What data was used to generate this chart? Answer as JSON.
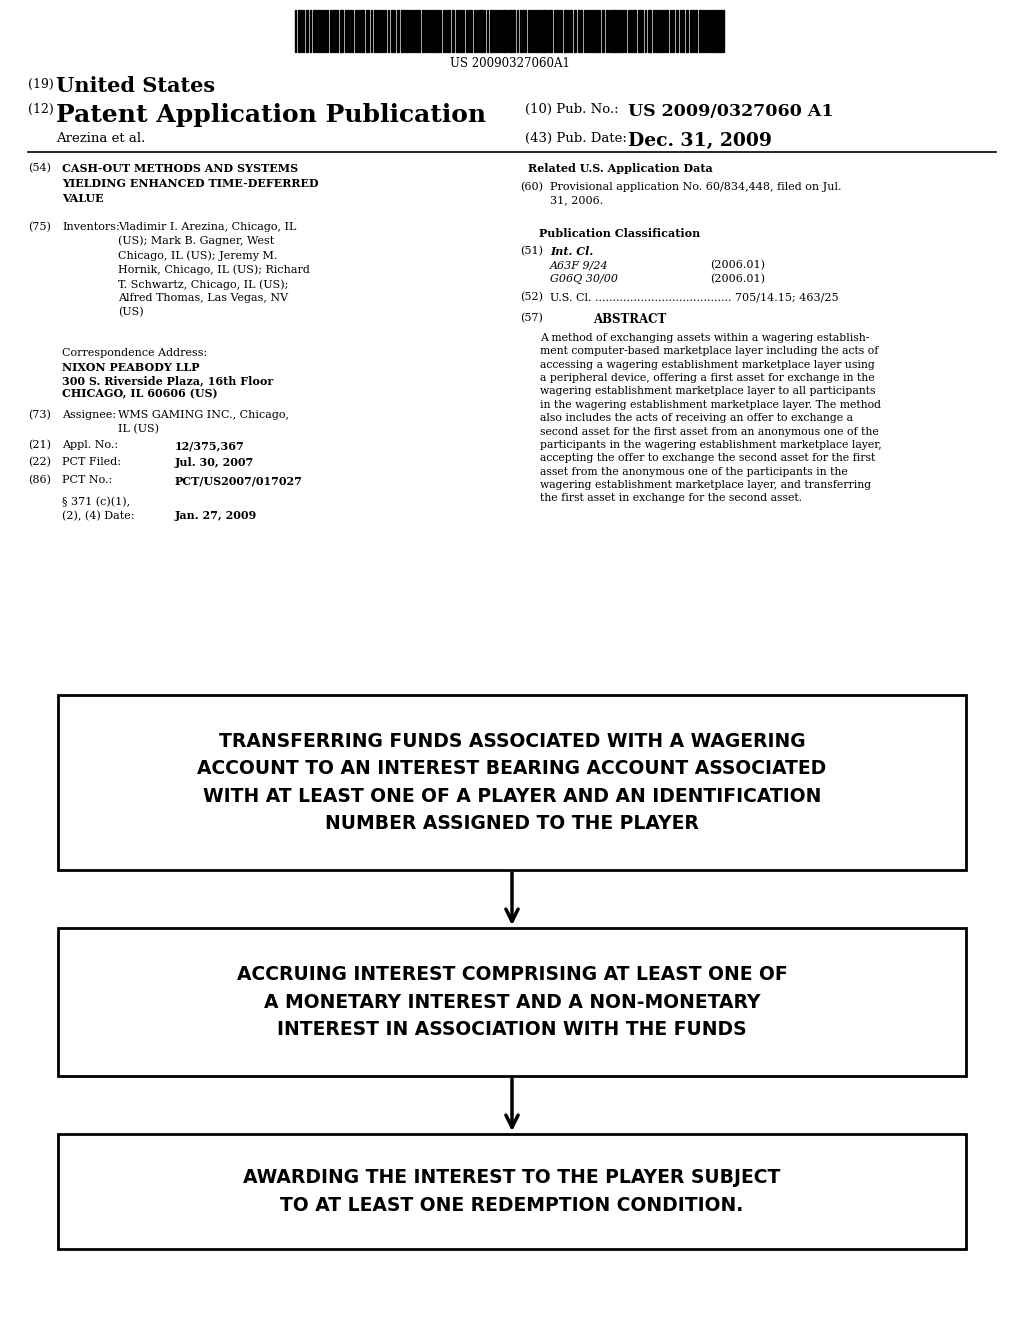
{
  "bg_color": "#ffffff",
  "barcode_text": "US 20090327060A1",
  "header_line1_num": "(19)",
  "header_line1_text": "United States",
  "header_line2_num": "(12)",
  "header_line2_text": "Patent Application Publication",
  "header_pub_no_label": "(10) Pub. No.:",
  "header_pub_no_value": "US 2009/0327060 A1",
  "header_author": "Arezina et al.",
  "header_pub_date_label": "(43) Pub. Date:",
  "header_pub_date_value": "Dec. 31, 2009",
  "field54_label": "(54)",
  "field54_text": "CASH-OUT METHODS AND SYSTEMS\nYIELDING ENHANCED TIME-DEFERRED\nVALUE",
  "related_header": "Related U.S. Application Data",
  "field60_label": "(60)",
  "field60_text": "Provisional application No. 60/834,448, filed on Jul.\n31, 2006.",
  "field75_label": "(75)",
  "field75_title": "Inventors:",
  "field75_text": "Vladimir I. Arezina, Chicago, IL\n(US); Mark B. Gagner, West\nChicago, IL (US); Jeremy M.\nHornik, Chicago, IL (US); Richard\nT. Schwartz, Chicago, IL (US);\nAlfred Thomas, Las Vegas, NV\n(US)",
  "pubclass_header": "Publication Classification",
  "field51_label": "(51)",
  "field51_title": "Int. Cl.",
  "field51_a63f": "A63F 9/24",
  "field51_a63f_year": "(2006.01)",
  "field51_g06q": "G06Q 30/00",
  "field51_g06q_year": "(2006.01)",
  "field52_label": "(52)",
  "field52_text": "U.S. Cl. ....................................... 705/14.15; 463/25",
  "corr_label": "Correspondence Address:",
  "corr_line1": "NIXON PEABODY LLP",
  "corr_line2": "300 S. Riverside Plaza, 16th Floor",
  "corr_line3": "CHICAGO, IL 60606 (US)",
  "field73_label": "(73)",
  "field73_title": "Assignee:",
  "field73_text": "WMS GAMING INC., Chicago,\nIL (US)",
  "field21_label": "(21)",
  "field21_title": "Appl. No.:",
  "field21_value": "12/375,367",
  "field22_label": "(22)",
  "field22_title": "PCT Filed:",
  "field22_value": "Jul. 30, 2007",
  "field86_label": "(86)",
  "field86_title": "PCT No.:",
  "field86_value": "PCT/US2007/017027",
  "field371_sec": "§ 371 (c)(1),\n(2), (4) Date:",
  "field371_value": "Jan. 27, 2009",
  "field57_label": "(57)",
  "field57_header": "ABSTRACT",
  "abstract_wrapped": "A method of exchanging assets within a wagering establish-\nment computer-based marketplace layer including the acts of\naccessing a wagering establishment marketplace layer using\na peripheral device, offering a first asset for exchange in the\nwagering establishment marketplace layer to all participants\nin the wagering establishment marketplace layer. The method\nalso includes the acts of receiving an offer to exchange a\nsecond asset for the first asset from an anonymous one of the\nparticipants in the wagering establishment marketplace layer,\naccepting the offer to exchange the second asset for the first\nasset from the anonymous one of the participants in the\nwagering establishment marketplace layer, and transferring\nthe first asset in exchange for the second asset.",
  "box1_text": "TRANSFERRING FUNDS ASSOCIATED WITH A WAGERING\nACCOUNT TO AN INTEREST BEARING ACCOUNT ASSOCIATED\nWITH AT LEAST ONE OF A PLAYER AND AN IDENTIFICATION\nNUMBER ASSIGNED TO THE PLAYER",
  "box2_text": "ACCRUING INTEREST COMPRISING AT LEAST ONE OF\nA MONETARY INTEREST AND A NON-MONETARY\nINTEREST IN ASSOCIATION WITH THE FUNDS",
  "box3_text": "AWARDING THE INTEREST TO THE PLAYER SUBJECT\nTO AT LEAST ONE REDEMPTION CONDITION."
}
